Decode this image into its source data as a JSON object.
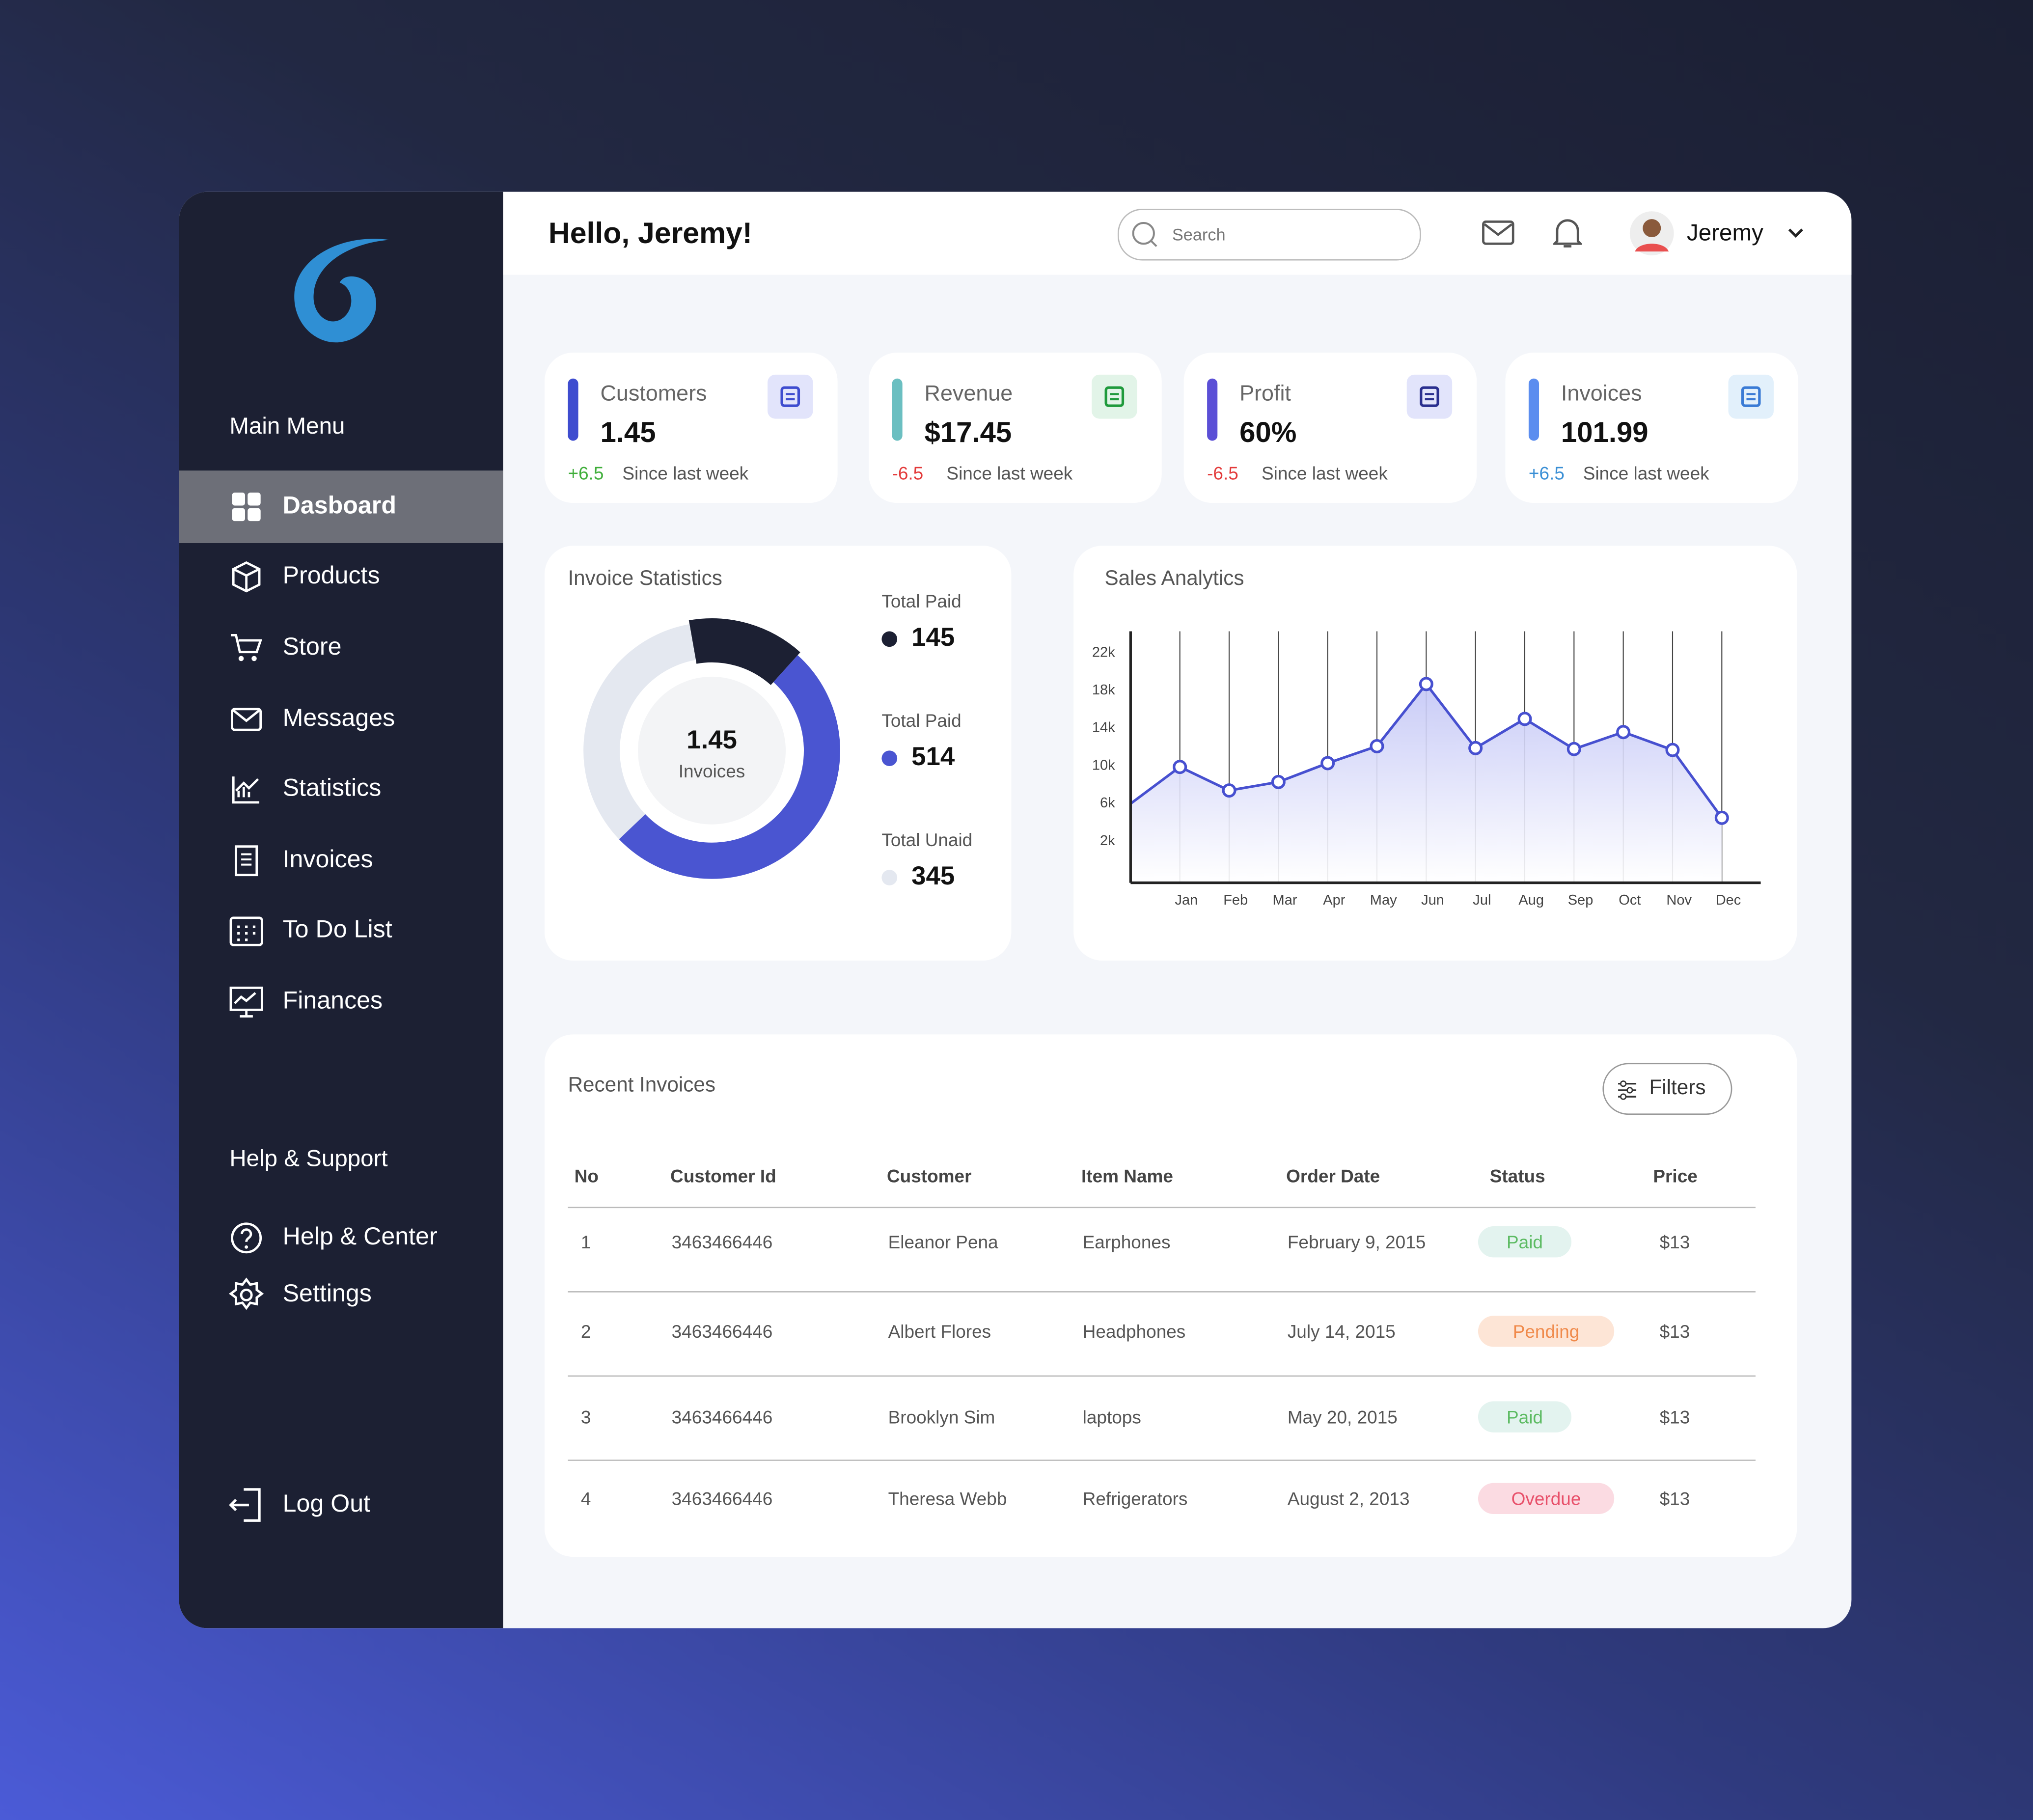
{
  "header": {
    "greeting": "Hello, Jeremy!",
    "search_placeholder": "Search",
    "user": "Jeremy"
  },
  "sidebar": {
    "main_menu": "Main  Menu",
    "items": [
      "Dasboard",
      "Products",
      "Store",
      "Messages",
      "Statistics",
      "Invoices",
      "To Do List",
      "Finances"
    ],
    "support_title": "Help & Support",
    "support_items": [
      "Help & Center",
      "Settings"
    ],
    "logout": "Log Out"
  },
  "stat_cards": [
    {
      "label": "Customers",
      "value": "1.45",
      "change": "+6.5",
      "note": "Since last week"
    },
    {
      "label": "Revenue",
      "value": "$17.45",
      "change": "-6.5",
      "note": "Since last week"
    },
    {
      "label": "Profit",
      "value": "60%",
      "change": "-6.5",
      "note": "Since last week"
    },
    {
      "label": "Invoices",
      "value": "101.99",
      "change": "+6.5",
      "note": "Since last week"
    }
  ],
  "chart_data": [
    {
      "type": "donut",
      "title": "Invoice Statistics",
      "center_value": "1.45",
      "center_label": "Invoices",
      "categories": [
        "Total Paid",
        "Total Paid",
        "Total Unaid"
      ],
      "values": [
        145,
        514,
        345
      ],
      "colors": [
        "#1c2033",
        "#4a55d1",
        "#e4e8f0"
      ]
    },
    {
      "type": "line",
      "title": "Sales Analytics",
      "categories": [
        null,
        "Jan",
        "Feb",
        "Mar",
        "Apr",
        "May",
        "Jun",
        "Jul",
        "Aug",
        "Sep",
        "Oct",
        "Nov",
        "Dec"
      ],
      "series": [
        {
          "color": "#4750d0",
          "values": [
            6000,
            9900,
            7400,
            8300,
            10300,
            12100,
            18700,
            11900,
            15000,
            11800,
            13600,
            11700,
            4500
          ]
        }
      ],
      "ylim": [
        -2400,
        24300
      ],
      "yticks": [
        {
          "value": 2000,
          "label": "2k"
        },
        {
          "value": 6000,
          "label": "6k"
        },
        {
          "value": 10000,
          "label": "10k"
        },
        {
          "value": 14000,
          "label": "14k"
        },
        {
          "value": 18000,
          "label": "18k"
        },
        {
          "value": 22000,
          "label": "22k"
        }
      ],
      "grid": true
    }
  ],
  "table": {
    "title": "Recent Invoices",
    "filter_button": "Filters",
    "columns": [
      "No",
      "Customer Id",
      "Customer",
      "Item Name",
      "Order Date",
      "Status",
      "Price"
    ],
    "rows": [
      [
        "1",
        "3463466446",
        "Eleanor Pena",
        "Earphones",
        "February 9, 2015",
        "Paid",
        "$13"
      ],
      [
        "2",
        "3463466446",
        "Albert Flores",
        "Headphones",
        "July 14, 2015",
        "Pending",
        "$13"
      ],
      [
        "3",
        "3463466446",
        "Brooklyn Sim",
        "laptops",
        "May 20, 2015",
        "Paid",
        "$13"
      ],
      [
        "4",
        "3463466446",
        "Theresa Webb",
        "Refrigerators",
        "August 2, 2013",
        "Overdue",
        "$13"
      ]
    ]
  }
}
